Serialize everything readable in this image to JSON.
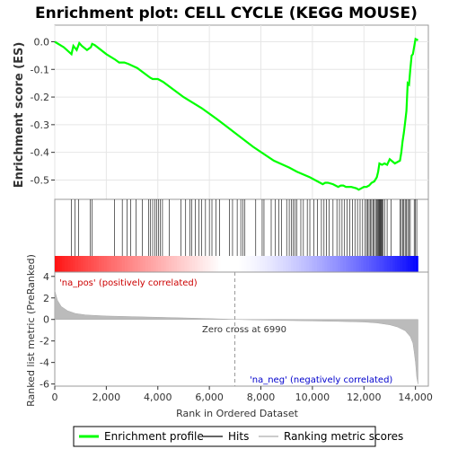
{
  "chart_data": {
    "type": "line",
    "title": "Enrichment plot: CELL CYCLE (KEGG MOUSE)",
    "top_panel": {
      "ylabel": "Enrichment score (ES)",
      "ylim": [
        -0.57,
        0.06
      ],
      "yticks": [
        0.0,
        -0.1,
        -0.2,
        -0.3,
        -0.4,
        -0.5
      ],
      "ytick_labels": [
        "0.0",
        "-0.1",
        "-0.2",
        "-0.3",
        "-0.4",
        "-0.5"
      ],
      "grid": true,
      "series": [
        {
          "name": "Enrichment profile",
          "color": "#00ff00",
          "x": [
            0,
            350,
            650,
            720,
            850,
            950,
            1050,
            1250,
            1400,
            1450,
            1550,
            2000,
            2350,
            2500,
            2700,
            2850,
            3200,
            3700,
            3800,
            4000,
            4200,
            5000,
            5700,
            6300,
            7000,
            7700,
            8500,
            9100,
            9400,
            9900,
            10200,
            10400,
            10500,
            10600,
            10800,
            11000,
            11100,
            11200,
            11300,
            11500,
            11700,
            11800,
            11900,
            12000,
            12100,
            12200,
            12300,
            12400,
            12500,
            12550,
            12600,
            12700,
            12800,
            12900,
            13000,
            13200,
            13400,
            13450,
            13500,
            13550,
            13600,
            13650,
            13700,
            13750,
            13800,
            13850,
            13900,
            14000,
            14100
          ],
          "y": [
            0.0,
            -0.02,
            -0.045,
            -0.015,
            -0.03,
            -0.005,
            -0.015,
            -0.03,
            -0.02,
            -0.008,
            -0.012,
            -0.045,
            -0.065,
            -0.075,
            -0.075,
            -0.08,
            -0.095,
            -0.13,
            -0.135,
            -0.135,
            -0.145,
            -0.2,
            -0.24,
            -0.28,
            -0.33,
            -0.38,
            -0.43,
            -0.455,
            -0.47,
            -0.49,
            -0.505,
            -0.515,
            -0.51,
            -0.51,
            -0.515,
            -0.525,
            -0.52,
            -0.52,
            -0.525,
            -0.525,
            -0.53,
            -0.535,
            -0.53,
            -0.525,
            -0.525,
            -0.52,
            -0.51,
            -0.505,
            -0.49,
            -0.47,
            -0.44,
            -0.445,
            -0.44,
            -0.445,
            -0.425,
            -0.44,
            -0.43,
            -0.4,
            -0.36,
            -0.33,
            -0.29,
            -0.25,
            -0.15,
            -0.155,
            -0.1,
            -0.05,
            -0.045,
            0.01,
            0.005
          ]
        }
      ]
    },
    "hits_panel": {
      "label": "Hits",
      "hit_positions": [
        640,
        780,
        920,
        1380,
        1450,
        2320,
        2620,
        2800,
        2950,
        3150,
        3400,
        3650,
        3720,
        3800,
        3880,
        3950,
        4020,
        4100,
        4180,
        4450,
        4900,
        5080,
        5250,
        5310,
        5450,
        5600,
        5700,
        5850,
        6000,
        6100,
        6250,
        6400,
        6780,
        6900,
        7080,
        7220,
        7300,
        7380,
        7800,
        8050,
        8120,
        8400,
        8550,
        8700,
        8800,
        9000,
        9100,
        9180,
        9250,
        9320,
        9400,
        9550,
        9650,
        9800,
        9900,
        10050,
        10200,
        10350,
        10450,
        10550,
        10650,
        10800,
        10950,
        11050,
        11150,
        11250,
        11350,
        11450,
        11550,
        11650,
        11750,
        11850,
        11950,
        12050,
        12100,
        12150,
        12200,
        12250,
        12300,
        12350,
        12400,
        12450,
        12500,
        12530,
        12560,
        12590,
        12620,
        12650,
        12680,
        12710,
        12740,
        12800,
        12900,
        13050,
        13400,
        13450,
        13500,
        13550,
        13600,
        13650,
        13700,
        13750,
        13800,
        13950,
        14000,
        14050
      ]
    },
    "bottom_panel": {
      "ylabel": "Ranked list metric (PreRanked)",
      "xlabel": "Rank in Ordered Dataset",
      "ylim": [
        -6.2,
        4.4
      ],
      "yticks": [
        4,
        2,
        0,
        -2,
        -4,
        -6
      ],
      "ytick_labels": [
        "4",
        "2",
        "0",
        "-2",
        "-4",
        "-6"
      ],
      "series": [
        {
          "name": "Ranking metric scores",
          "color": "#bbbbbb",
          "x": [
            0,
            100,
            250,
            500,
            800,
            1200,
            2000,
            3000,
            4000,
            5000,
            6000,
            6990,
            8000,
            9000,
            10000,
            11000,
            12000,
            12500,
            13000,
            13300,
            13600,
            13800,
            13900,
            13950,
            14000,
            14050,
            14100
          ],
          "y": [
            2.7,
            1.8,
            1.2,
            0.8,
            0.55,
            0.42,
            0.32,
            0.26,
            0.2,
            0.14,
            0.08,
            0.0,
            -0.06,
            -0.1,
            -0.14,
            -0.18,
            -0.24,
            -0.32,
            -0.5,
            -0.7,
            -1.05,
            -1.6,
            -2.2,
            -3.0,
            -4.0,
            -5.4,
            -6.0
          ]
        }
      ],
      "zero_cross_label": "Zero cross at 6990",
      "zero_cross_x": 6990,
      "pos_label": "'na_pos' (positively correlated)",
      "neg_label": "'na_neg' (negatively correlated)"
    },
    "x_axis": {
      "xlim": [
        0,
        14500
      ],
      "xticks": [
        0,
        2000,
        4000,
        6000,
        8000,
        10000,
        12000,
        14000
      ],
      "xtick_labels": [
        "0",
        "2,000",
        "4,000",
        "6,000",
        "8,000",
        "10,000",
        "12,000",
        "14,000"
      ],
      "n_genes": 14100
    },
    "legend": {
      "placement": "bottom",
      "entries": [
        {
          "label": "Enrichment profile",
          "color": "#00ff00"
        },
        {
          "label": "Hits",
          "color": "#666666"
        },
        {
          "label": "Ranking metric scores",
          "color": "#cccccc"
        }
      ]
    }
  }
}
